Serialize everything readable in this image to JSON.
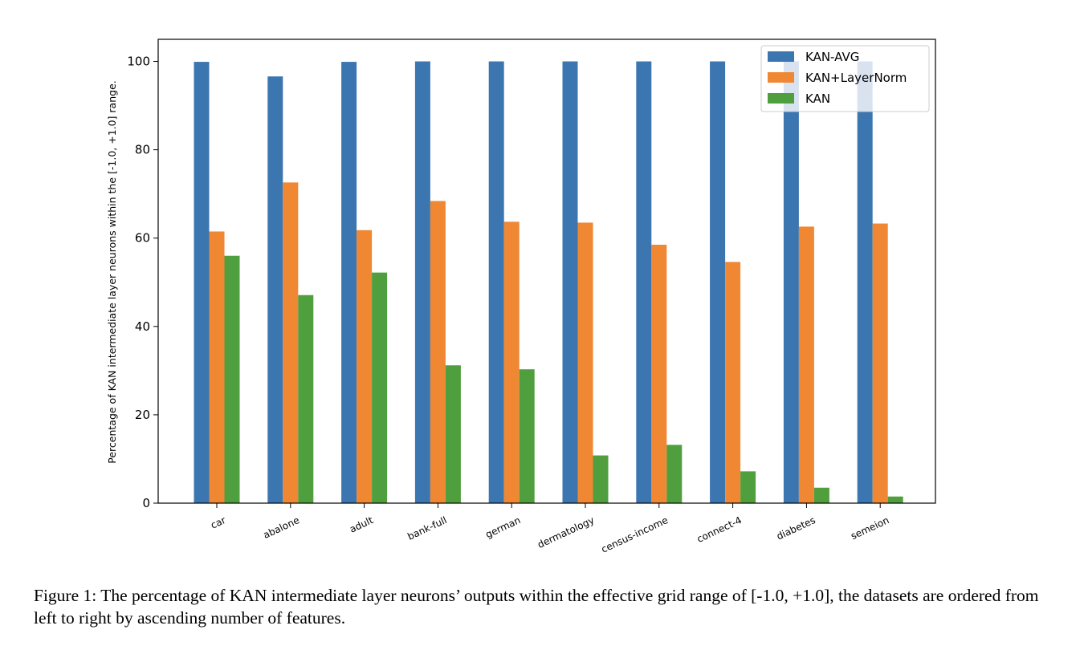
{
  "chart_data": {
    "type": "bar",
    "title": "",
    "xlabel": "",
    "ylabel": "Percentage of KAN intermediate layer neurons within the [-1.0, +1.0] range.",
    "ylim": [
      0,
      105
    ],
    "yticks": [
      "0",
      "20",
      "40",
      "60",
      "80",
      "100"
    ],
    "grid": false,
    "legend_position": "top-right",
    "categories": [
      "car",
      "abalone",
      "adult",
      "bank-full",
      "german",
      "dermatology",
      "census-income",
      "connect-4",
      "diabetes",
      "semeion"
    ],
    "series": [
      {
        "name": "KAN-AVG",
        "color": "#3c76b0",
        "values": [
          99.9,
          96.6,
          99.9,
          100.0,
          100.0,
          100.0,
          100.0,
          100.0,
          100.0,
          100.0
        ]
      },
      {
        "name": "KAN+LayerNorm",
        "color": "#f08733",
        "values": [
          61.5,
          72.6,
          61.8,
          68.4,
          63.7,
          63.5,
          58.5,
          54.6,
          62.6,
          63.3
        ]
      },
      {
        "name": "KAN",
        "color": "#509f3e",
        "values": [
          56.0,
          47.1,
          52.2,
          31.2,
          30.3,
          10.8,
          13.2,
          7.2,
          3.5,
          1.5
        ]
      }
    ]
  },
  "caption": {
    "text": "Figure 1: The percentage of KAN intermediate layer neurons’ outputs within the effective grid range of [-1.0, +1.0], the datasets are ordered from left to right by ascending number of features."
  }
}
